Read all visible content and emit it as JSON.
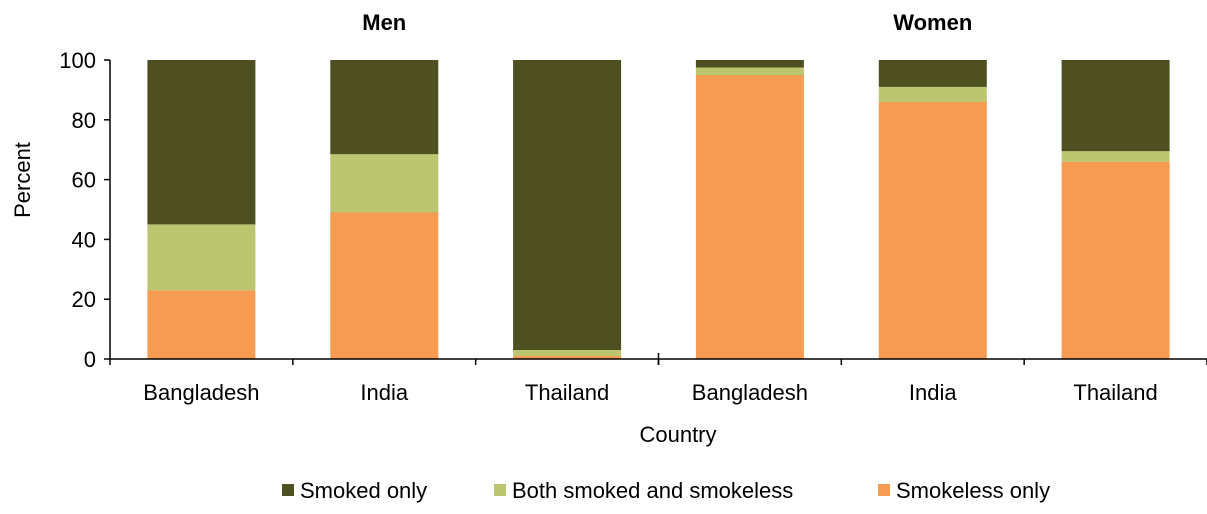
{
  "chart_data": {
    "type": "bar",
    "stacked": true,
    "groups": [
      {
        "title": "Men",
        "categories": [
          "Bangladesh",
          "India",
          "Thailand"
        ]
      },
      {
        "title": "Women",
        "categories": [
          "Bangladesh",
          "India",
          "Thailand"
        ]
      }
    ],
    "series": [
      {
        "name": "Smokeless only",
        "color": "#F59C52",
        "values": [
          23,
          49,
          1,
          95,
          86,
          66
        ]
      },
      {
        "name": "Both smoked and smokeless",
        "color": "#BCC56F",
        "values": [
          22,
          19.5,
          2,
          2.5,
          5,
          3.5
        ]
      },
      {
        "name": "Smoked only",
        "color": "#4E5022",
        "values": [
          55,
          31.5,
          97,
          2.5,
          9,
          30.5
        ]
      }
    ],
    "legend_order": [
      "Smoked only",
      "Both smoked and smokeless",
      "Smokeless only"
    ],
    "xlabel": "Country",
    "ylabel": "Percent",
    "ylim": [
      0,
      100
    ],
    "yticks": [
      "0",
      "20",
      "40",
      "60",
      "80",
      "100"
    ],
    "grid": false,
    "legend_position": "bottom"
  }
}
